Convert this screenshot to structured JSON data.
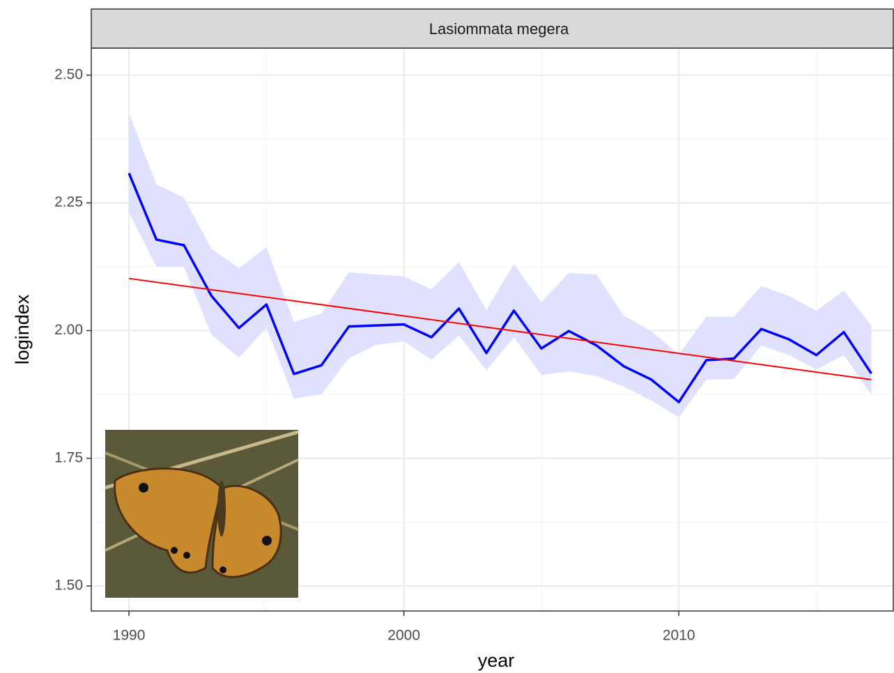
{
  "chart_data": {
    "type": "line",
    "strip_title": "Lasiommata megera",
    "x_label": "year",
    "y_label": "logindex",
    "x": [
      1990,
      1991,
      1992,
      1993,
      1994,
      1995,
      1996,
      1997,
      1998,
      1999,
      2000,
      2001,
      2002,
      2003,
      2004,
      2005,
      2006,
      2007,
      2008,
      2009,
      2010,
      2011,
      2012,
      2013,
      2014,
      2015,
      2016,
      2017
    ],
    "series": [
      {
        "color": "#0000ff",
        "ribbon_color": "#e0e0ff",
        "values": [
          2.308,
          2.178,
          2.167,
          2.068,
          2.005,
          2.051,
          1.915,
          1.932,
          2.008,
          2.01,
          2.012,
          1.987,
          2.043,
          1.956,
          2.039,
          1.965,
          1.999,
          1.971,
          1.93,
          1.904,
          1.86,
          1.942,
          1.945,
          2.003,
          1.983,
          1.952,
          1.997,
          1.916
        ],
        "upper": [
          2.425,
          2.286,
          2.26,
          2.16,
          2.122,
          2.163,
          2.017,
          2.033,
          2.114,
          2.11,
          2.106,
          2.081,
          2.134,
          2.04,
          2.13,
          2.055,
          2.113,
          2.11,
          2.029,
          1.999,
          1.953,
          2.027,
          2.027,
          2.087,
          2.068,
          2.039,
          2.078,
          2.01
        ],
        "lower": [
          2.231,
          2.125,
          2.125,
          1.992,
          1.947,
          2.006,
          1.867,
          1.875,
          1.946,
          1.972,
          1.979,
          1.943,
          1.99,
          1.922,
          1.987,
          1.913,
          1.92,
          1.911,
          1.89,
          1.863,
          1.83,
          1.904,
          1.905,
          1.971,
          1.952,
          1.924,
          1.952,
          1.875
        ]
      }
    ],
    "trend": {
      "color": "#ff0000",
      "x": [
        1990,
        2017
      ],
      "values": [
        2.102,
        1.904
      ]
    },
    "xlim": [
      1988.63,
      2017.8
    ],
    "ylim": [
      1.451,
      2.553
    ],
    "xticks": [
      1990,
      2000,
      2010
    ],
    "yticks": [
      {
        "value": 1.5,
        "label": "1.50"
      },
      1.75,
      {
        "value": 2,
        "label": "2.00"
      },
      2.25,
      {
        "value": 2.5,
        "label": "2.50"
      }
    ],
    "x_minor_ticks": [
      1995,
      2005,
      2015
    ],
    "y_minor_ticks": [
      1.625,
      1.875,
      2.125,
      2.375
    ],
    "grid": true
  }
}
